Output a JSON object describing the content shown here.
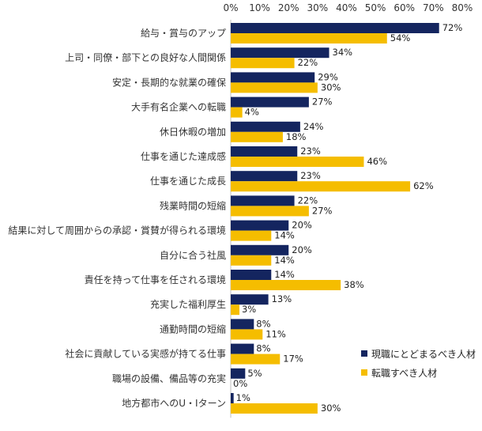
{
  "chart_data": {
    "type": "bar",
    "orientation": "horizontal",
    "title": "",
    "xlabel": "",
    "ylabel": "",
    "xlim": [
      0,
      80
    ],
    "ticks": [
      "0%",
      "10%",
      "20%",
      "30%",
      "40%",
      "50%",
      "60%",
      "70%",
      "80%"
    ],
    "tick_values": [
      0,
      10,
      20,
      30,
      40,
      50,
      60,
      70,
      80
    ],
    "grid": false,
    "legend_position": "bottom-right",
    "categories": [
      "給与・賞与のアップ",
      "上司・同僚・部下との良好な人間関係",
      "安定・長期的な就業の確保",
      "大手有名企業への転職",
      "休日休暇の増加",
      "仕事を通じた達成感",
      "仕事を通じた成長",
      "残業時間の短縮",
      "結果に対して周囲からの承認・賞賛が得られる環境",
      "自分に合う社風",
      "責任を持って仕事を任される環境",
      "充実した福利厚生",
      "通勤時間の短縮",
      "社会に貢献している実感が持てる仕事",
      "職場の設備、備品等の充実",
      "地方都市へのU・Iターン"
    ],
    "series": [
      {
        "name": "現職にとどまるべき人材",
        "color": "#14255f",
        "values": [
          72,
          34,
          29,
          27,
          24,
          23,
          23,
          22,
          20,
          20,
          14,
          13,
          8,
          8,
          5,
          1
        ],
        "labels": [
          "72%",
          "34%",
          "29%",
          "27%",
          "24%",
          "23%",
          "23%",
          "22%",
          "20%",
          "20%",
          "14%",
          "13%",
          "8%",
          "8%",
          "5%",
          "1%"
        ]
      },
      {
        "name": "転職すべき人材",
        "color": "#f5bd00",
        "values": [
          54,
          22,
          30,
          4,
          18,
          46,
          62,
          27,
          14,
          14,
          38,
          3,
          11,
          17,
          0,
          30
        ],
        "labels": [
          "54%",
          "22%",
          "30%",
          "4%",
          "18%",
          "46%",
          "62%",
          "27%",
          "14%",
          "14%",
          "38%",
          "3%",
          "11%",
          "17%",
          "0%",
          "30%"
        ]
      }
    ]
  }
}
